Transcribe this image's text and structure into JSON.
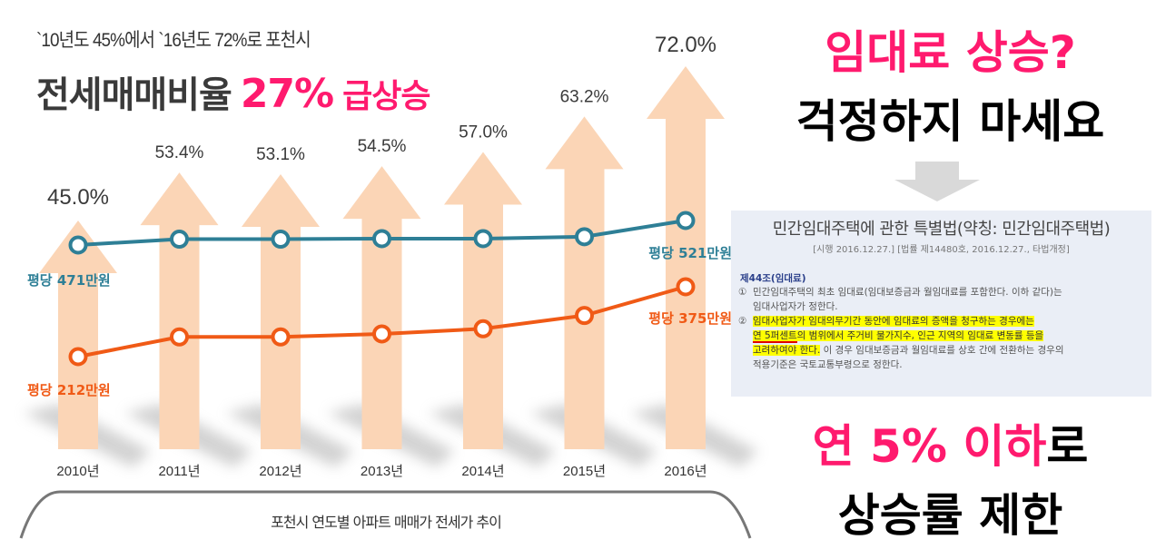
{
  "header": {
    "subtitle": "`10년도 45%에서 `16년도 72%로 포천시",
    "headline_prefix": "전세매매비율",
    "headline_pct": "27%",
    "headline_suffix": "급상승"
  },
  "caption": "포천시 연도별 아파트 매매가 전세가 추이",
  "right": {
    "question": "임대료 상승?",
    "reassure": "걱정하지 마세요",
    "down_arrow_icon": "arrow-down-icon",
    "bottom_highlight": "연 5% 이하",
    "bottom_suffix": "로",
    "bottom_line2": "상승률 제한"
  },
  "law": {
    "title": "민간임대주택에 관한 특별법(약칭: 민간임대주택법)",
    "subtitle": "[시행 2016.12.27.] [법률 제14480호, 2016.12.27., 타법개정]",
    "article": "제44조(임대료)",
    "item1_num": "①",
    "item1_text": "민간임대주택의 최초 임대료(임대보증금과 월임대료를 포함한다. 이하 같다)는",
    "item1_cont": "임대사업자가 정한다.",
    "item2_num": "②",
    "item2_hl1": "임대사업자가 임대의무기간 동안에 임대료의 증액을 청구하는 경우에는",
    "item2_hl2a": "연 5퍼센트",
    "item2_hl2b": "의 범위에서 주거비 물가지수, 인근 지역의 임대료 변동률 등을",
    "item2_hl3": "고려하여야 한다.",
    "item2_rest": " 이 경우 임대보증금과 월임대료를 상호 간에 전환하는 경우의",
    "item2_last": "적용기준은 국토교통부령으로 정한다."
  },
  "colors": {
    "accent_pink": "#ff1a6e",
    "arrow_fill": "#fbd5b6",
    "jeonse_line": "#2e7f96",
    "sale_line": "#f05a16",
    "text_dark": "#3a3a3a",
    "panel_bg": "#eaeef6",
    "highlight": "#ffff00"
  },
  "chart_data": {
    "type": "line",
    "title": "포천시 연도별 아파트 매매가 전세가 추이",
    "categories": [
      "2010년",
      "2011년",
      "2012년",
      "2013년",
      "2014년",
      "2015년",
      "2016년"
    ],
    "ratio_series": {
      "name": "전세매매비율 (%)",
      "values": [
        45.0,
        53.4,
        53.1,
        54.5,
        57.0,
        63.2,
        72.0
      ],
      "labels": [
        "45.0%",
        "53.4%",
        "53.1%",
        "54.5%",
        "57.0%",
        "63.2%",
        "72.0%"
      ]
    },
    "series": [
      {
        "name": "매매가 (평당, 만원)",
        "start_value": 471,
        "end_value": 521,
        "start_label": "평당 471만원",
        "end_label": "평당 521만원",
        "values": [
          471,
          483,
          483,
          484,
          484,
          488,
          521
        ]
      },
      {
        "name": "전세가 (평당, 만원)",
        "start_value": 212,
        "end_value": 375,
        "start_label": "평당 212만원",
        "end_label": "평당 375만원",
        "values": [
          212,
          258,
          258,
          265,
          277,
          308,
          375
        ]
      }
    ],
    "xlabel": "",
    "ylabel": "",
    "grid": false,
    "legend": "none"
  }
}
